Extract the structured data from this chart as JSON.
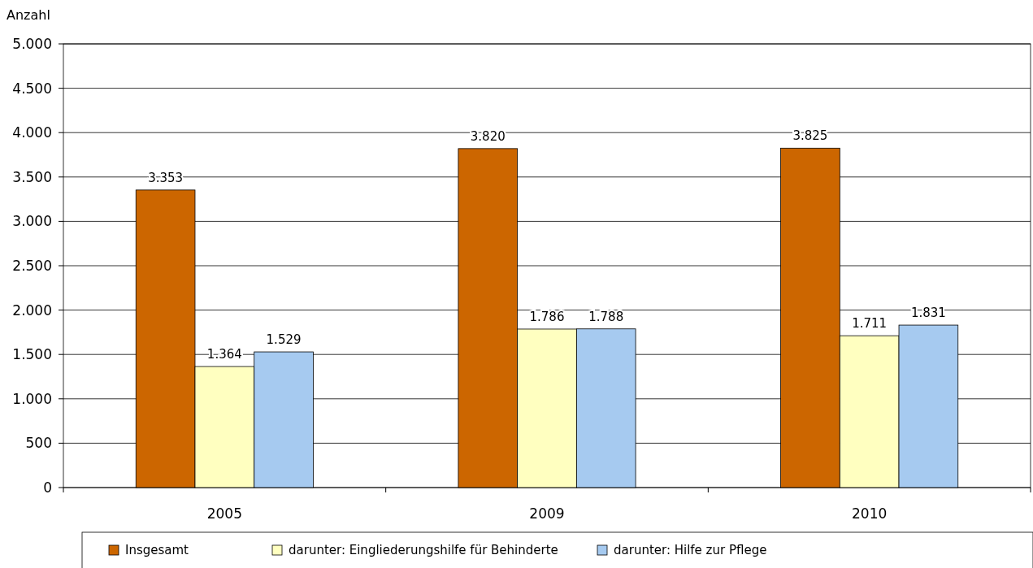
{
  "chart_data": {
    "type": "bar",
    "ylabel": "Anzahl",
    "categories": [
      "2005",
      "2009",
      "2010"
    ],
    "series": [
      {
        "name": "Insgesamt",
        "color": "#cc6600",
        "values": [
          3353,
          3820,
          3825
        ],
        "value_labels": [
          "3.353",
          "3.820",
          "3.825"
        ]
      },
      {
        "name": "darunter: Eingliederungshilfe für Behinderte",
        "color": "#ffffc0",
        "values": [
          1364,
          1786,
          1711
        ],
        "value_labels": [
          "1.364",
          "1.786",
          "1.711"
        ]
      },
      {
        "name": "darunter: Hilfe zur Pflege",
        "color": "#a6caf0",
        "values": [
          1529,
          1788,
          1831
        ],
        "value_labels": [
          "1.529",
          "1.788",
          "1.831"
        ]
      }
    ],
    "ylim": [
      0,
      5000
    ],
    "yticks": [
      {
        "value": 0,
        "label": "0"
      },
      {
        "value": 500,
        "label": "500"
      },
      {
        "value": 1000,
        "label": "1.000"
      },
      {
        "value": 1500,
        "label": "1.500"
      },
      {
        "value": 2000,
        "label": "2.000"
      },
      {
        "value": 2500,
        "label": "2.500"
      },
      {
        "value": 3000,
        "label": "3.000"
      },
      {
        "value": 3500,
        "label": "3.500"
      },
      {
        "value": 4000,
        "label": "4.000"
      },
      {
        "value": 4500,
        "label": "4.500"
      },
      {
        "value": 5000,
        "label": "5.000"
      }
    ],
    "grid": "y",
    "legend": "bottom"
  }
}
